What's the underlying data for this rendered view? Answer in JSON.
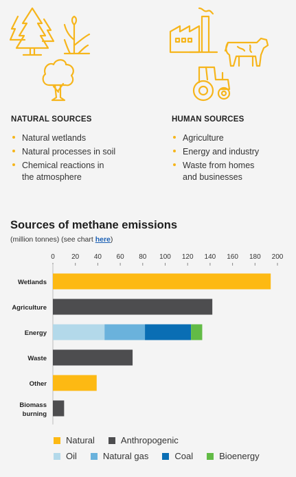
{
  "natural": {
    "heading": "NATURAL SOURCES",
    "items": [
      "Natural wetlands",
      "Natural processes in soil",
      "Chemical reactions in the atmosphere"
    ]
  },
  "human": {
    "heading": "HUMAN SOURCES",
    "items": [
      "Agriculture",
      "Energy and industry",
      "Waste from homes and businesses"
    ]
  },
  "icon_color": "#f6b51b",
  "chart_data": {
    "type": "bar",
    "title": "Sources of methane emissions",
    "subtitle_prefix": "(million tonnes) (see chart ",
    "subtitle_link": "here",
    "subtitle_suffix": ")",
    "xlim": [
      0,
      200
    ],
    "xticks": [
      0,
      20,
      40,
      60,
      80,
      100,
      120,
      140,
      160,
      180,
      200
    ],
    "categories": [
      "Wetlands",
      "Agriculture",
      "Energy",
      "Waste",
      "Other",
      "Biomass burning"
    ],
    "series": [
      {
        "name": "Natural",
        "color": "#fdb913",
        "values": [
          194,
          0,
          0,
          0,
          39,
          0
        ]
      },
      {
        "name": "Anthropogenic",
        "color": "#4d4d4f",
        "values": [
          0,
          142,
          0,
          71,
          0,
          10
        ]
      },
      {
        "name": "Oil",
        "color": "#b3d9ea",
        "values": [
          0,
          0,
          46,
          0,
          0,
          0
        ]
      },
      {
        "name": "Natural gas",
        "color": "#6ab2dc",
        "values": [
          0,
          0,
          36,
          0,
          0,
          0
        ]
      },
      {
        "name": "Coal",
        "color": "#0a6eb4",
        "values": [
          0,
          0,
          41,
          0,
          0,
          0
        ]
      },
      {
        "name": "Bioenergy",
        "color": "#62bb46",
        "values": [
          0,
          0,
          10,
          0,
          0,
          0
        ]
      }
    ],
    "legend_rows": [
      [
        "Natural",
        "Anthropogenic"
      ],
      [
        "Oil",
        "Natural gas",
        "Coal",
        "Bioenergy"
      ]
    ]
  }
}
